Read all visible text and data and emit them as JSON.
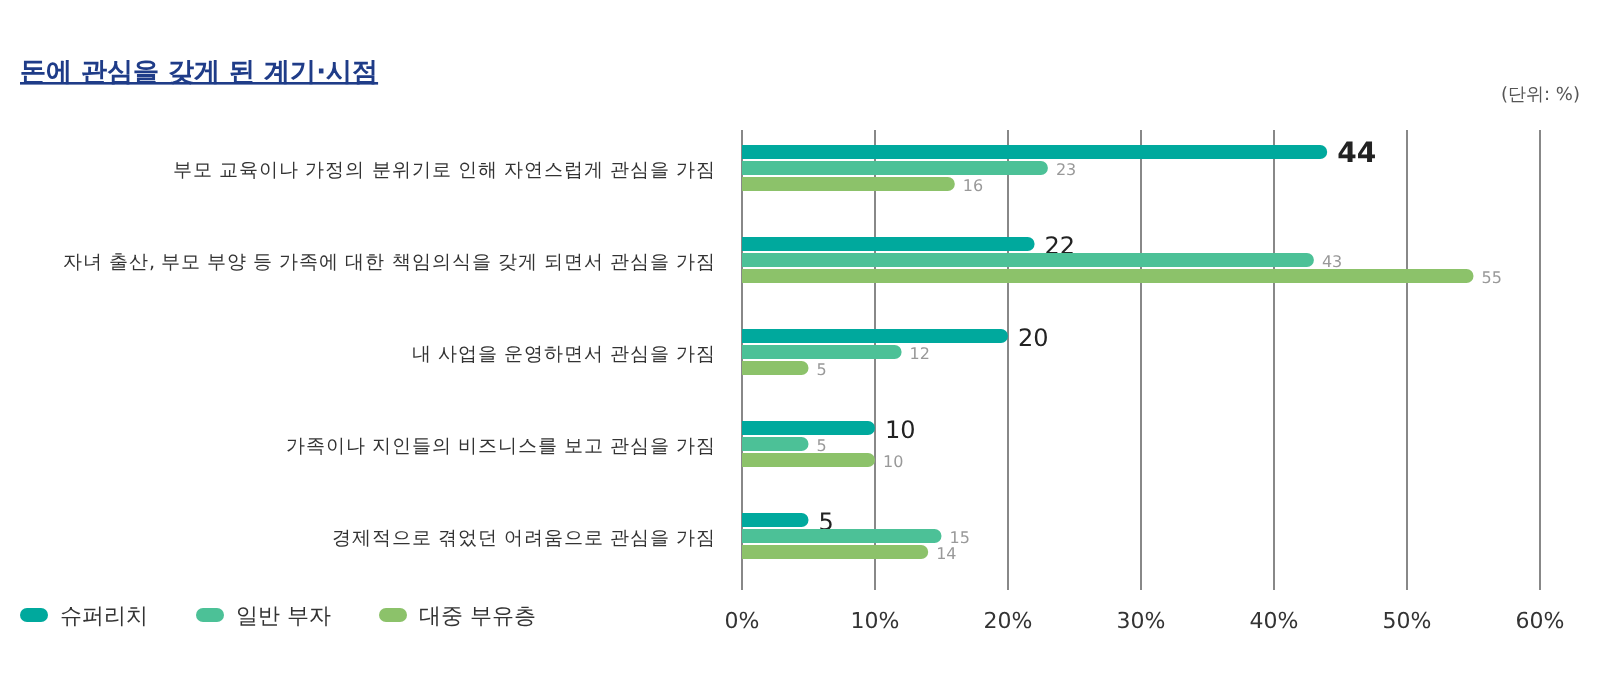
{
  "chart_data": {
    "type": "bar",
    "orientation": "horizontal",
    "title": "돈에 관심을 갖게 된 계기·시점",
    "annotations": [
      "(단위: %)"
    ],
    "categories": [
      "부모 교육이나 가정의 분위기로 인해 자연스럽게 관심을 가짐",
      "자녀 출산, 부모 부양 등 가족에 대한 책임의식을 갖게 되면서 관심을 가짐",
      "내 사업을 운영하면서 관심을 가짐",
      "가족이나 지인들의 비즈니스를 보고 관심을 가짐",
      "경제적으로 겪었던 어려움으로 관심을 가짐"
    ],
    "series": [
      {
        "name": "슈퍼리치",
        "color": "#00a99d",
        "values": [
          44,
          22,
          20,
          10,
          5
        ]
      },
      {
        "name": "일반 부자",
        "color": "#4cc197",
        "values": [
          23,
          43,
          12,
          5,
          15
        ]
      },
      {
        "name": "대중 부유층",
        "color": "#8cc26a",
        "values": [
          16,
          55,
          5,
          10,
          14
        ]
      }
    ],
    "xlim": [
      0,
      60
    ],
    "xticks": [
      {
        "value": 0,
        "label": "0%"
      },
      {
        "value": 10,
        "label": "10%"
      },
      {
        "value": 20,
        "label": "20%"
      },
      {
        "value": 30,
        "label": "30%"
      },
      {
        "value": 40,
        "label": "40%"
      },
      {
        "value": 50,
        "label": "50%"
      },
      {
        "value": 60,
        "label": "60%"
      }
    ],
    "grid": "x",
    "legend": "bottom left",
    "data_labels": true
  }
}
